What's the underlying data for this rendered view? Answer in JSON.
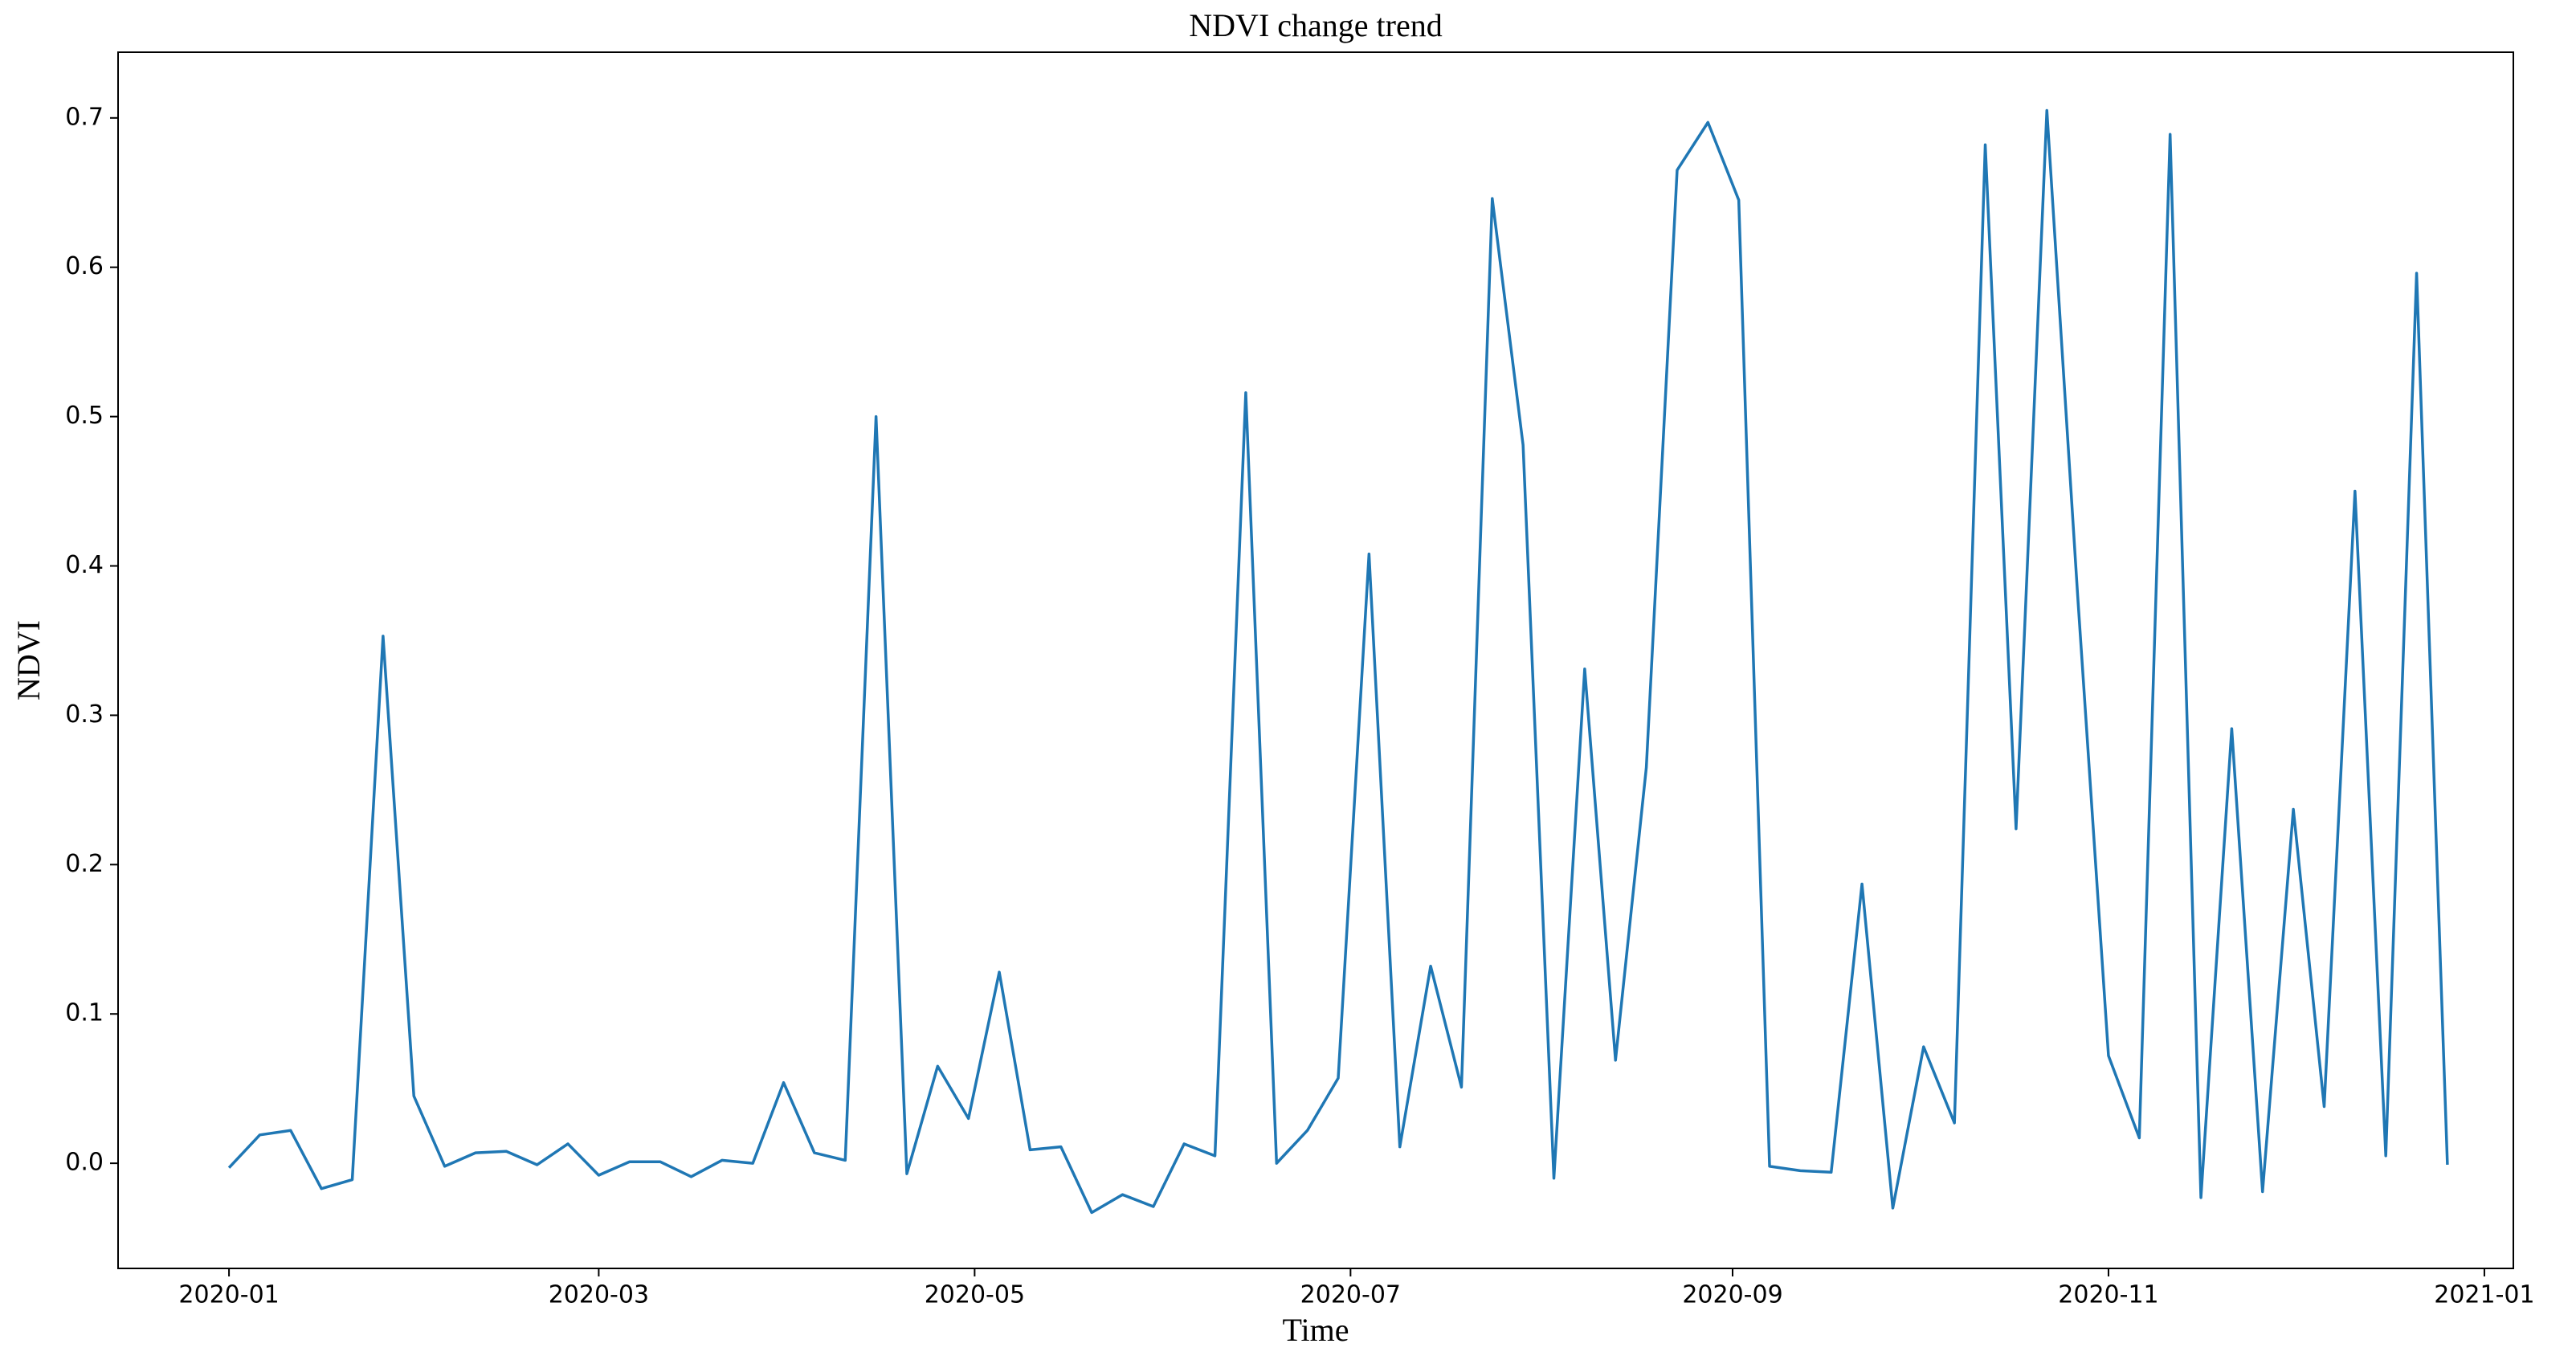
{
  "chart_data": {
    "type": "line",
    "title": "NDVI change trend",
    "x_label": "Time",
    "y_label": "NDVI",
    "x": [
      0,
      5,
      10,
      15,
      20,
      25,
      30,
      35,
      40,
      45,
      50,
      55,
      60,
      65,
      70,
      75,
      80,
      85,
      90,
      95,
      100,
      105,
      110,
      115,
      120,
      125,
      130,
      135,
      140,
      145,
      150,
      155,
      160,
      165,
      170,
      175,
      180,
      185,
      190,
      195,
      200,
      205,
      210,
      215,
      220,
      225,
      230,
      235,
      240,
      245,
      250,
      255,
      260,
      265,
      270,
      275,
      280,
      285,
      290,
      295,
      300,
      305,
      310,
      315,
      320,
      325,
      330,
      335,
      340,
      345,
      350,
      355,
      360
    ],
    "series": [
      {
        "name": "NDVI",
        "color": "#1f77b4",
        "values": [
          -0.003,
          0.019,
          0.022,
          -0.017,
          -0.011,
          0.353,
          0.045,
          -0.002,
          0.007,
          0.008,
          -0.001,
          0.013,
          -0.008,
          0.001,
          0.001,
          -0.009,
          0.002,
          0.0,
          0.054,
          0.007,
          0.002,
          0.5,
          -0.007,
          0.065,
          0.03,
          0.128,
          0.009,
          0.011,
          -0.033,
          -0.021,
          -0.029,
          0.013,
          0.005,
          0.516,
          0.0,
          0.022,
          0.057,
          0.408,
          0.011,
          0.132,
          0.051,
          0.646,
          0.481,
          -0.01,
          0.331,
          0.069,
          0.265,
          0.665,
          0.697,
          0.645,
          -0.002,
          -0.005,
          -0.006,
          0.187,
          -0.03,
          0.078,
          0.027,
          0.682,
          0.224,
          0.705,
          0.38,
          0.072,
          0.017,
          0.689,
          -0.023,
          0.291,
          -0.019,
          0.237,
          0.038,
          0.45,
          0.005,
          0.596,
          -0.001
        ]
      }
    ],
    "xlim": [
      -18,
      370.7
    ],
    "xticks": [
      {
        "value": 0,
        "label": "2020-01"
      },
      {
        "value": 60,
        "label": "2020-03"
      },
      {
        "value": 121,
        "label": "2020-05"
      },
      {
        "value": 182,
        "label": "2020-07"
      },
      {
        "value": 244,
        "label": "2020-09"
      },
      {
        "value": 305,
        "label": "2020-11"
      },
      {
        "value": 366,
        "label": "2021-01"
      }
    ],
    "ylim": [
      -0.0704,
      0.744
    ],
    "yticks": [
      {
        "value": 0,
        "label": "0.0"
      },
      0.1,
      0.2,
      0.3,
      0.4,
      0.5,
      0.6,
      0.7
    ]
  }
}
